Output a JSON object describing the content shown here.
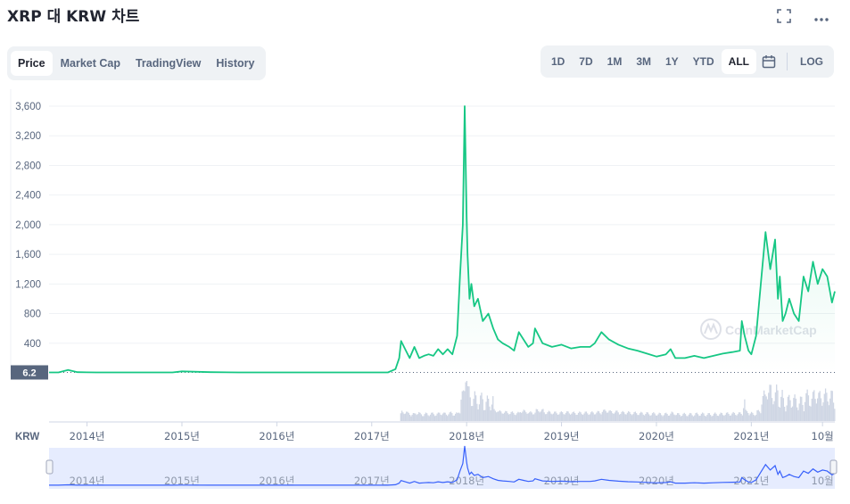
{
  "title": "XRP 대 KRW 차트",
  "icons": {
    "fullscreen": "fullscreen-icon",
    "more": "more-icon",
    "calendar": "calendar-icon"
  },
  "tabs": [
    {
      "label": "Price",
      "active": true
    },
    {
      "label": "Market Cap",
      "active": false
    },
    {
      "label": "TradingView",
      "active": false
    },
    {
      "label": "History",
      "active": false
    }
  ],
  "ranges": [
    {
      "label": "1D",
      "active": false
    },
    {
      "label": "7D",
      "active": false
    },
    {
      "label": "1M",
      "active": false
    },
    {
      "label": "3M",
      "active": false
    },
    {
      "label": "1Y",
      "active": false
    },
    {
      "label": "YTD",
      "active": false
    },
    {
      "label": "ALL",
      "active": true
    }
  ],
  "log_label": "LOG",
  "colors": {
    "line": "#16c784",
    "volume": "#cfd6e4",
    "navigator_line": "#3861fb",
    "navigator_fill": "#e6ecfe"
  },
  "chart_data": {
    "type": "line",
    "series": [
      {
        "x": [
          2013.6,
          2013.7,
          2013.8,
          2013.9,
          2014.0,
          2014.1,
          2014.3,
          2014.6,
          2014.9,
          2015.0,
          2015.3,
          2015.6,
          2015.9,
          2016.2,
          2016.6,
          2016.9,
          2017.0,
          2017.17,
          2017.25,
          2017.29,
          2017.31,
          2017.36,
          2017.4,
          2017.45,
          2017.5,
          2017.55,
          2017.6,
          2017.65,
          2017.7,
          2017.75,
          2017.8,
          2017.85,
          2017.9,
          2017.93,
          2017.96,
          2017.98,
          2018.0,
          2018.01,
          2018.03,
          2018.05,
          2018.08,
          2018.12,
          2018.17,
          2018.23,
          2018.28,
          2018.33,
          2018.38,
          2018.45,
          2018.5,
          2018.55,
          2018.6,
          2018.65,
          2018.7,
          2018.72,
          2018.8,
          2018.9,
          2019.0,
          2019.1,
          2019.2,
          2019.3,
          2019.35,
          2019.42,
          2019.5,
          2019.6,
          2019.7,
          2019.8,
          2019.9,
          2020.0,
          2020.1,
          2020.15,
          2020.2,
          2020.3,
          2020.4,
          2020.5,
          2020.6,
          2020.7,
          2020.8,
          2020.88,
          2020.9,
          2020.93,
          2020.97,
          2021.0,
          2021.05,
          2021.1,
          2021.15,
          2021.2,
          2021.25,
          2021.28,
          2021.3,
          2021.33,
          2021.36,
          2021.4,
          2021.45,
          2021.5,
          2021.55,
          2021.6,
          2021.65,
          2021.7,
          2021.75,
          2021.8,
          2021.85,
          2021.88
        ],
        "values": [
          6.2,
          6.5,
          40,
          10,
          7,
          6.2,
          6.2,
          6.2,
          6.2,
          20,
          10,
          6.2,
          6.2,
          6.2,
          6.2,
          6.2,
          6.2,
          6.2,
          50,
          200,
          430,
          300,
          200,
          350,
          200,
          230,
          250,
          230,
          320,
          250,
          320,
          250,
          500,
          1300,
          2000,
          3600,
          2100,
          1600,
          1000,
          1200,
          900,
          1000,
          700,
          800,
          600,
          450,
          400,
          350,
          300,
          550,
          450,
          350,
          400,
          600,
          400,
          350,
          380,
          330,
          350,
          350,
          400,
          550,
          450,
          380,
          330,
          300,
          260,
          220,
          250,
          320,
          200,
          200,
          230,
          200,
          230,
          260,
          280,
          300,
          700,
          500,
          300,
          250,
          500,
          1200,
          1900,
          1400,
          1800,
          1000,
          1300,
          700,
          800,
          1000,
          800,
          700,
          1300,
          1100,
          1500,
          1200,
          1400,
          1300,
          950,
          1100
        ]
      }
    ],
    "x_ticks": [
      "2014년",
      "2015년",
      "2016년",
      "2017년",
      "2018년",
      "2019년",
      "2020년",
      "2021년",
      "10월"
    ],
    "y_ticks": [
      "400",
      "800",
      "1,200",
      "1,600",
      "2,000",
      "2,400",
      "2,800",
      "3,200",
      "3,600"
    ],
    "ylim": [
      0,
      3600
    ],
    "price_marker": "6.2",
    "currency_label": "KRW",
    "watermark": "CoinMarketCap"
  }
}
